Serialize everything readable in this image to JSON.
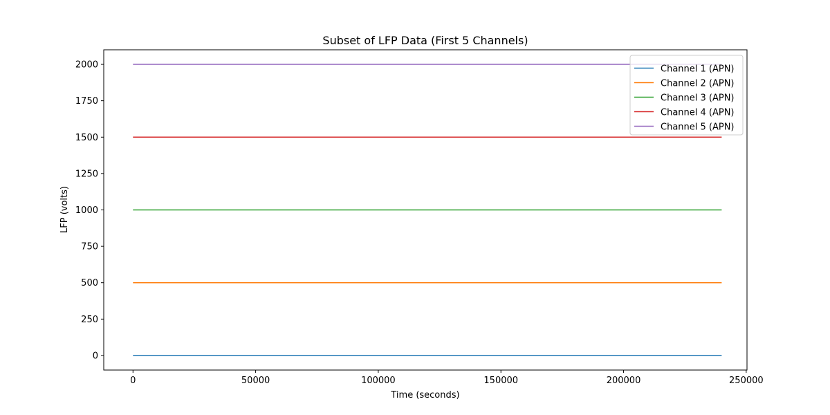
{
  "chart_data": {
    "type": "line",
    "title": "Subset of LFP Data (First 5 Channels)",
    "xlabel": "Time (seconds)",
    "ylabel": "LFP (volts)",
    "xlim": [
      -11920,
      250320
    ],
    "ylim": [
      -100,
      2100
    ],
    "x_ticks": [
      0,
      50000,
      100000,
      150000,
      200000,
      250000
    ],
    "x_tick_labels": [
      "0",
      "50000",
      "100000",
      "150000",
      "200000",
      "250000"
    ],
    "y_ticks": [
      0,
      250,
      500,
      750,
      1000,
      1250,
      1500,
      1750,
      2000
    ],
    "y_tick_labels": [
      "0",
      "250",
      "500",
      "750",
      "1000",
      "1250",
      "1500",
      "1750",
      "2000"
    ],
    "grid": false,
    "legend_position": "top-right",
    "series": [
      {
        "name": "Channel 1 (APN)",
        "color": "#1f77b4",
        "x": [
          0,
          240000
        ],
        "y": [
          0,
          0
        ]
      },
      {
        "name": "Channel 2 (APN)",
        "color": "#ff7f0e",
        "x": [
          0,
          240000
        ],
        "y": [
          500,
          500
        ]
      },
      {
        "name": "Channel 3 (APN)",
        "color": "#2ca02c",
        "x": [
          0,
          240000
        ],
        "y": [
          1000,
          1000
        ]
      },
      {
        "name": "Channel 4 (APN)",
        "color": "#d62728",
        "x": [
          0,
          240000
        ],
        "y": [
          1500,
          1500
        ]
      },
      {
        "name": "Channel 5 (APN)",
        "color": "#9467bd",
        "x": [
          0,
          240000
        ],
        "y": [
          2000,
          2000
        ]
      }
    ]
  }
}
